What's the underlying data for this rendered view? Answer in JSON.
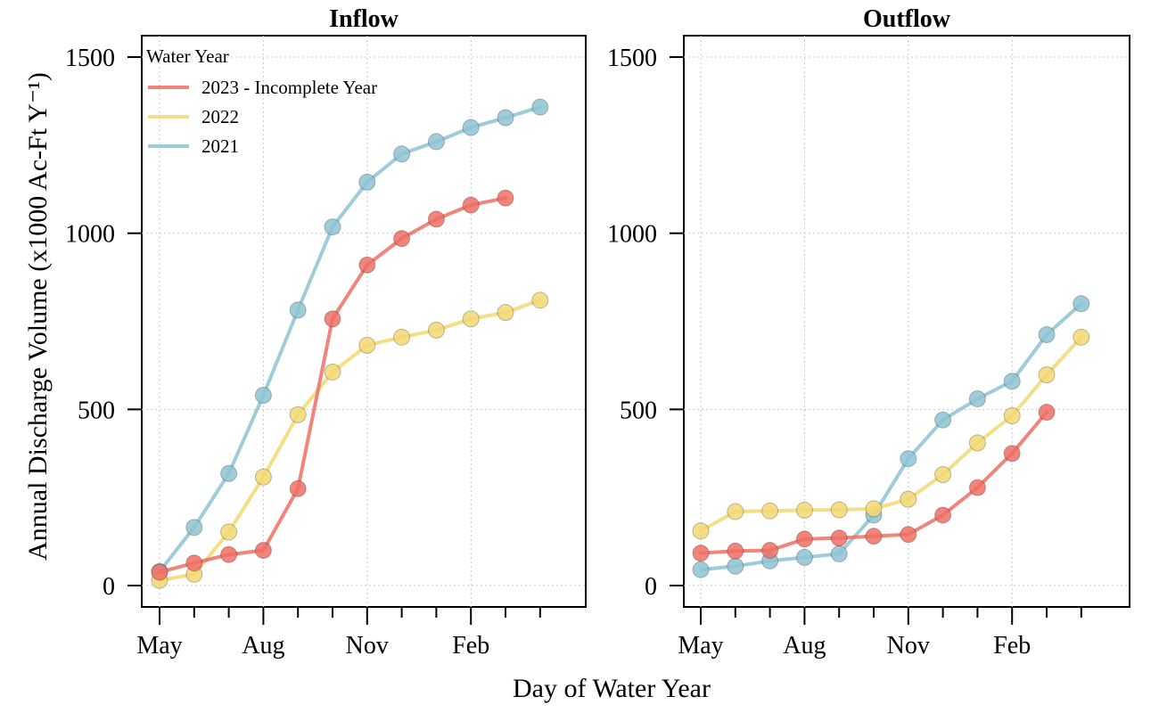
{
  "chart_data": [
    {
      "type": "line",
      "title": "Inflow",
      "ylabel": "Annual Discharge Volume (x1000 Ac-Ft Y⁻¹)",
      "xlabel": "Day of Water Year",
      "x_month_ticks": [
        "May",
        "Jun",
        "Jul",
        "Aug",
        "Sep",
        "Oct",
        "Nov",
        "Dec",
        "Jan",
        "Feb",
        "Mar",
        "Apr"
      ],
      "x_tick_labels": [
        "May",
        "Aug",
        "Nov",
        "Feb"
      ],
      "y_ticks": [
        0,
        500,
        1000,
        1500
      ],
      "y_tick_labels": [
        "0",
        "500",
        "1000",
        "1500"
      ],
      "ylim": [
        -60,
        1560
      ],
      "grid": true,
      "legend": {
        "title": "Water Year",
        "placement": "top-left",
        "entries": [
          "2023 - Incomplete Year",
          "2022",
          "2021"
        ]
      },
      "series": [
        {
          "name": "2023 - Incomplete Year",
          "color": "#ef6f64",
          "x": [
            "May",
            "Jun",
            "Jul",
            "Aug",
            "Sep",
            "Oct",
            "Nov",
            "Dec",
            "Jan",
            "Feb",
            "Mar"
          ],
          "values": [
            38,
            64,
            88,
            100,
            275,
            757,
            910,
            985,
            1040,
            1080,
            1100
          ]
        },
        {
          "name": "2022",
          "color": "#f2d872",
          "x": [
            "May",
            "Jun",
            "Jul",
            "Aug",
            "Sep",
            "Oct",
            "Nov",
            "Dec",
            "Jan",
            "Feb",
            "Mar",
            "Apr"
          ],
          "values": [
            15,
            32,
            152,
            308,
            485,
            606,
            682,
            705,
            725,
            757,
            775,
            810
          ]
        },
        {
          "name": "2021",
          "color": "#8ec3d2",
          "x": [
            "May",
            "Jun",
            "Jul",
            "Aug",
            "Sep",
            "Oct",
            "Nov",
            "Dec",
            "Jan",
            "Feb",
            "Mar",
            "Apr"
          ],
          "values": [
            40,
            165,
            318,
            540,
            782,
            1018,
            1145,
            1225,
            1260,
            1300,
            1328,
            1358
          ]
        }
      ]
    },
    {
      "type": "line",
      "title": "Outflow",
      "xlabel": "Day of Water Year",
      "x_month_ticks": [
        "May",
        "Jun",
        "Jul",
        "Aug",
        "Sep",
        "Oct",
        "Nov",
        "Dec",
        "Jan",
        "Feb",
        "Mar",
        "Apr"
      ],
      "x_tick_labels": [
        "May",
        "Aug",
        "Nov",
        "Feb"
      ],
      "y_ticks": [
        0,
        500,
        1000,
        1500
      ],
      "y_tick_labels": [
        "0",
        "500",
        "1000",
        "1500"
      ],
      "ylim": [
        -60,
        1560
      ],
      "grid": true,
      "series": [
        {
          "name": "2023 - Incomplete Year",
          "color": "#ef6f64",
          "x": [
            "May",
            "Jun",
            "Jul",
            "Aug",
            "Sep",
            "Oct",
            "Nov",
            "Dec",
            "Jan",
            "Feb",
            "Mar"
          ],
          "values": [
            92,
            98,
            100,
            132,
            135,
            140,
            145,
            200,
            278,
            375,
            492
          ]
        },
        {
          "name": "2022",
          "color": "#f2d872",
          "x": [
            "May",
            "Jun",
            "Jul",
            "Aug",
            "Sep",
            "Oct",
            "Nov",
            "Dec",
            "Jan",
            "Feb",
            "Mar",
            "Apr"
          ],
          "values": [
            155,
            210,
            212,
            214,
            215,
            218,
            245,
            315,
            405,
            482,
            598,
            705
          ]
        },
        {
          "name": "2021",
          "color": "#8ec3d2",
          "x": [
            "May",
            "Jun",
            "Jul",
            "Aug",
            "Sep",
            "Oct",
            "Nov",
            "Dec",
            "Jan",
            "Feb",
            "Mar",
            "Apr"
          ],
          "values": [
            45,
            55,
            70,
            80,
            90,
            200,
            360,
            470,
            530,
            580,
            712,
            800
          ]
        }
      ]
    }
  ]
}
